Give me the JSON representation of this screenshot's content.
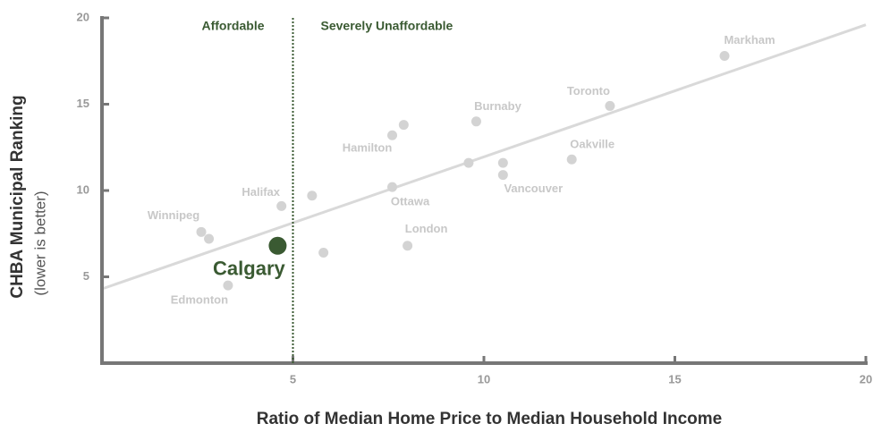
{
  "chart_data": {
    "type": "scatter",
    "xlabel": "Ratio of Median Home Price to Median Household Income",
    "ylabel": "CHBA Municipal Ranking",
    "ylabel_note": "(lower is better)",
    "xlim": [
      0,
      20
    ],
    "ylim": [
      0,
      20
    ],
    "xticks": [
      5,
      10,
      15,
      20
    ],
    "yticks": [
      5,
      10,
      15,
      20
    ],
    "divider": {
      "x": 5,
      "left_label": "Affordable",
      "right_label": "Severely Unaffordable",
      "color": "#3a5a32"
    },
    "trendline": {
      "x": [
        0,
        20
      ],
      "y": [
        4.3,
        19.6
      ],
      "color": "#d9d9d9"
    },
    "points": {
      "color": "#d3d3d3",
      "x": [
        16.3,
        13.3,
        9.8,
        12.3,
        7.6,
        7.9,
        9.6,
        10.5,
        10.5,
        7.6,
        4.7,
        5.5,
        2.6,
        2.8,
        5.8,
        8.0,
        3.3
      ],
      "y": [
        17.8,
        14.9,
        14.0,
        11.8,
        13.2,
        13.8,
        11.6,
        11.6,
        10.9,
        10.2,
        9.1,
        9.7,
        7.6,
        7.2,
        6.4,
        6.8,
        4.5
      ],
      "labels": [
        "Markham",
        "Toronto",
        "Burnaby",
        "Oakville",
        "Hamilton",
        null,
        null,
        null,
        "Vancouver",
        "Ottawa",
        "Halifax",
        null,
        "Winnipeg",
        null,
        null,
        "London",
        "Edmonton"
      ]
    },
    "highlight": {
      "x": 4.6,
      "y": 6.8,
      "label": "Calgary",
      "color": "#3a5a32"
    }
  }
}
